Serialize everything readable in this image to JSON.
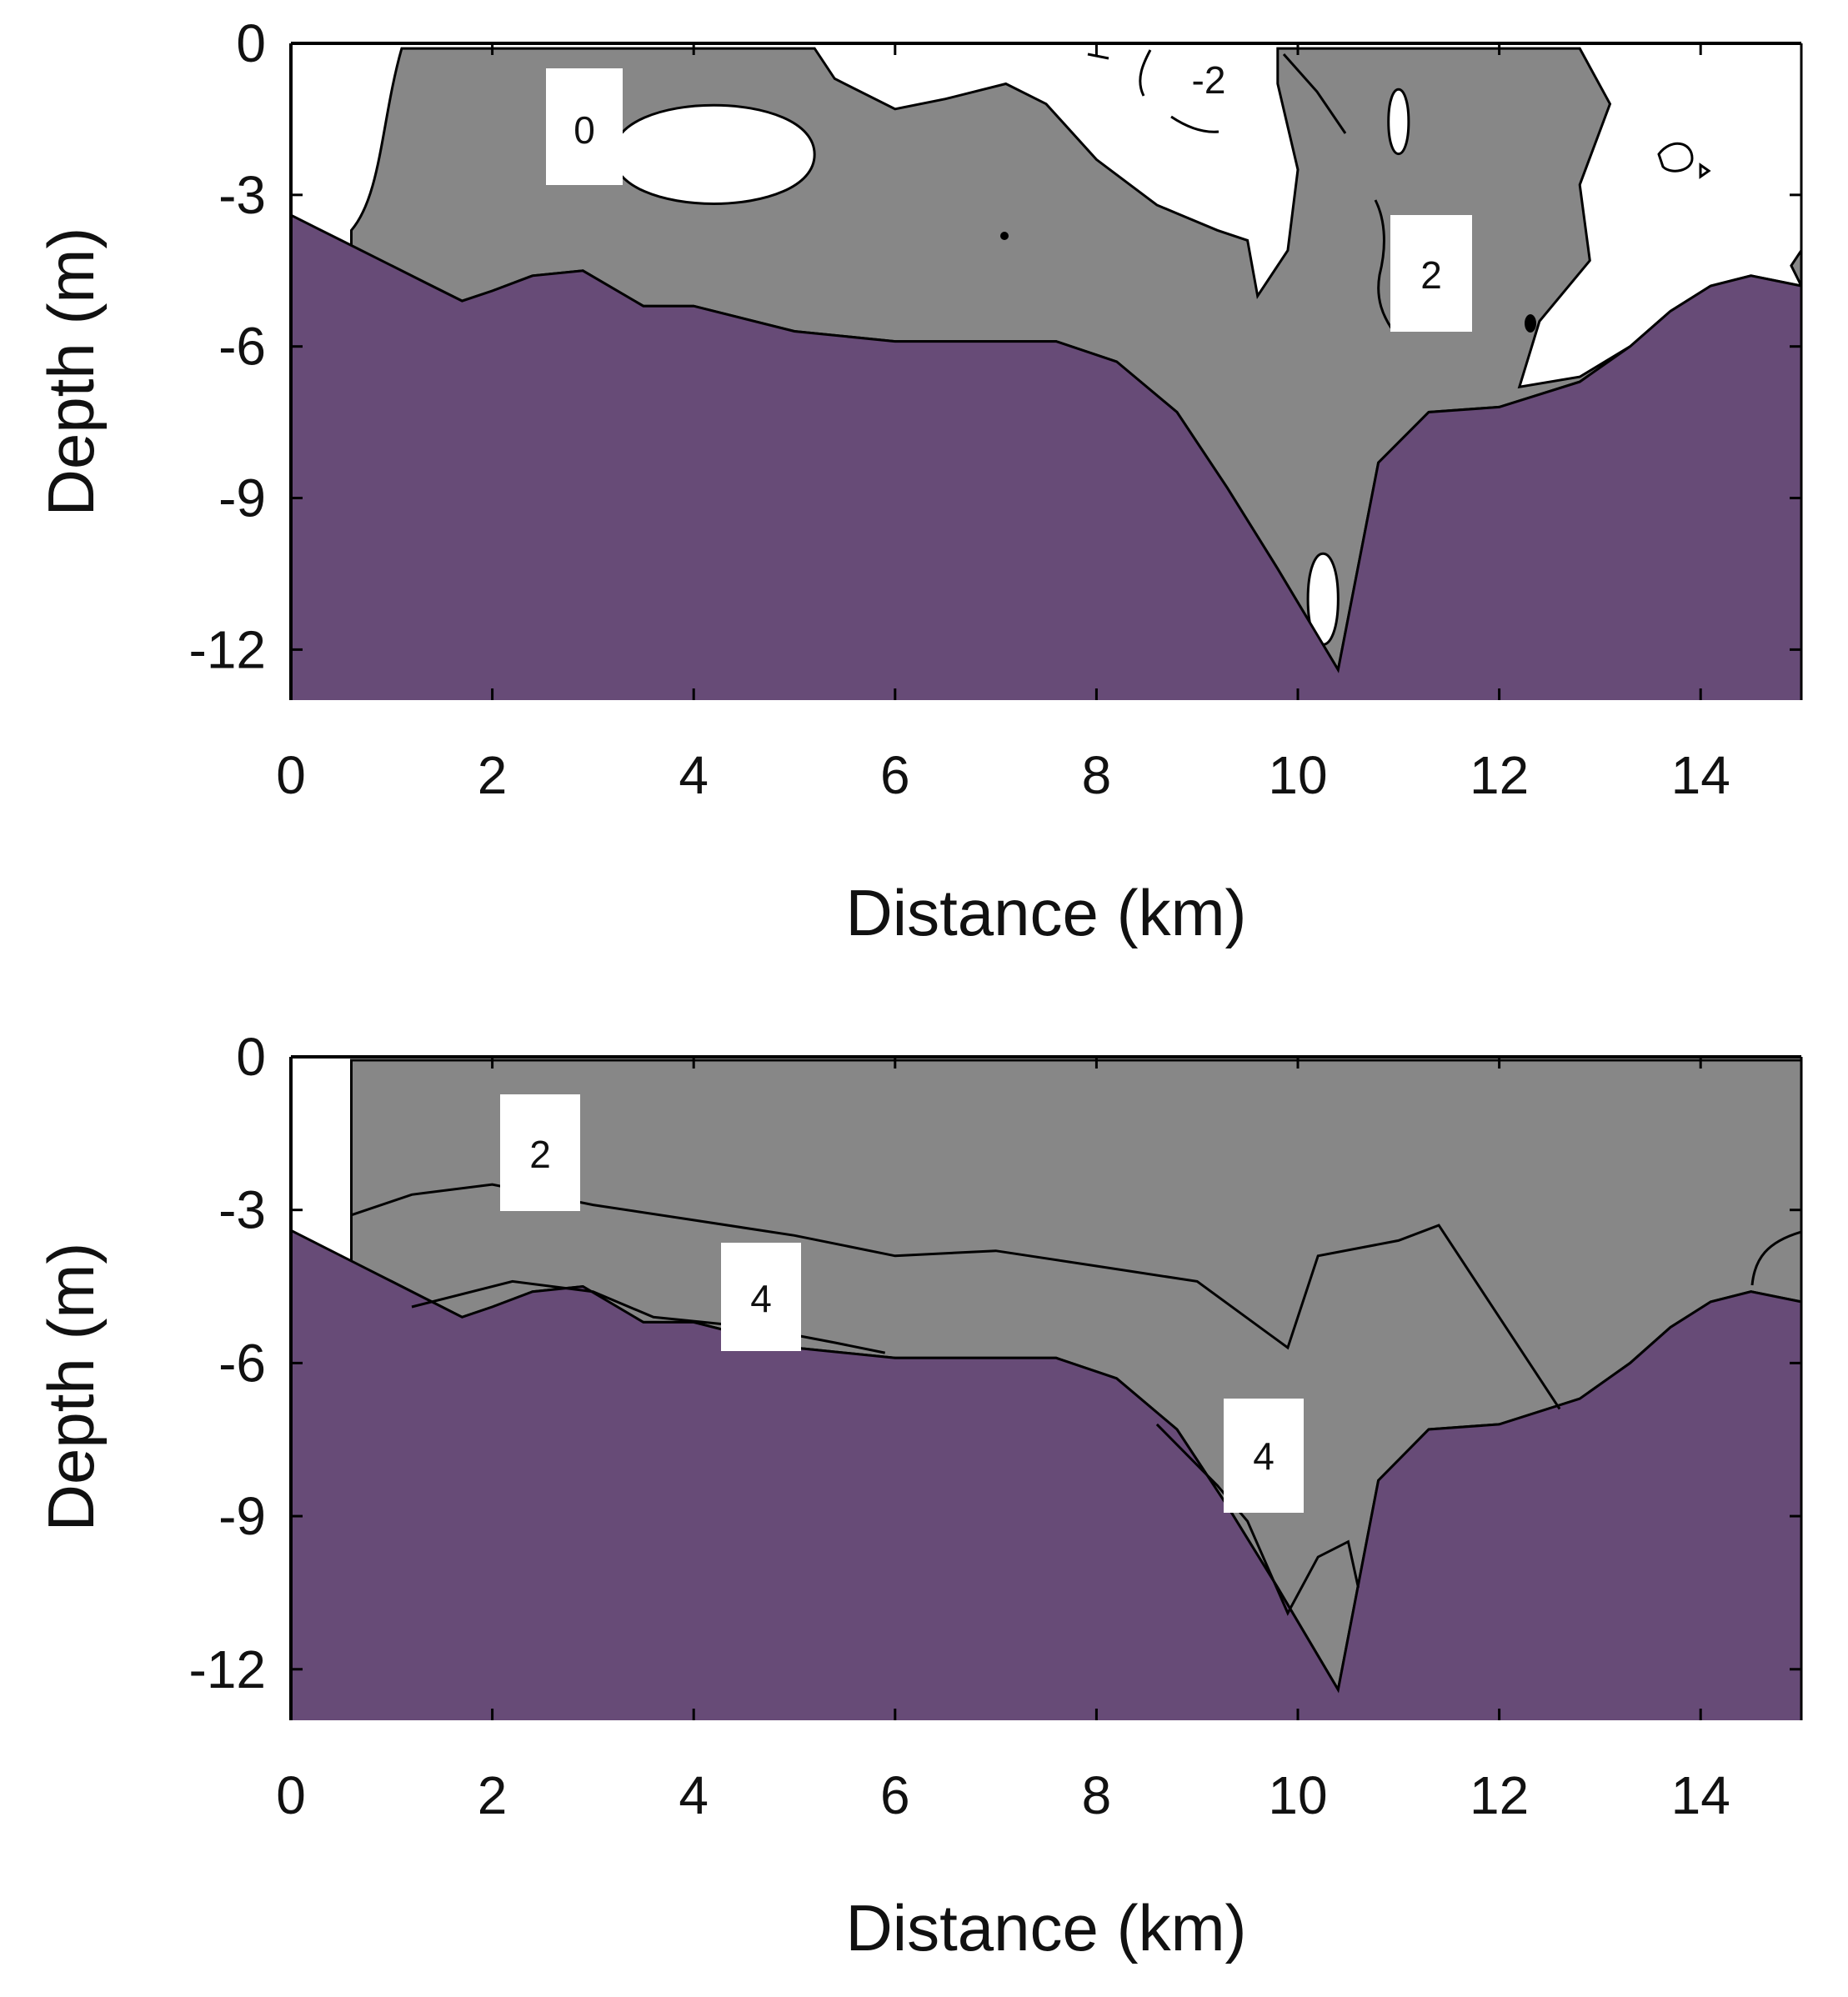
{
  "colors": {
    "seabed": "#674b77",
    "contour_fill": "#878787",
    "background": "#ffffff",
    "line": "#000000"
  },
  "chart_data": [
    {
      "type": "contour",
      "xlabel": "Distance (km)",
      "ylabel": "Depth (m)",
      "xlim": [
        0,
        15
      ],
      "ylim": [
        -13,
        0
      ],
      "xticks": [
        "0",
        "2",
        "4",
        "6",
        "8",
        "10",
        "12",
        "14"
      ],
      "yticks": [
        "0",
        "-3",
        "-6",
        "-9",
        "-12"
      ],
      "contour_labels": [
        "0",
        "-2",
        "2"
      ],
      "bathymetry": [
        [
          0,
          -3.4
        ],
        [
          0.5,
          -3.9
        ],
        [
          1,
          -4.4
        ],
        [
          1.4,
          -4.8
        ],
        [
          1.7,
          -5.1
        ],
        [
          2,
          -4.9
        ],
        [
          2.4,
          -4.6
        ],
        [
          2.9,
          -4.5
        ],
        [
          3.5,
          -5.2
        ],
        [
          4,
          -5.2
        ],
        [
          5,
          -5.7
        ],
        [
          6,
          -5.9
        ],
        [
          7,
          -5.9
        ],
        [
          7.6,
          -5.9
        ],
        [
          8.2,
          -6.3
        ],
        [
          8.8,
          -7.3
        ],
        [
          9.3,
          -8.8
        ],
        [
          9.8,
          -10.4
        ],
        [
          10.4,
          -12.4
        ],
        [
          10.8,
          -8.3
        ],
        [
          11.3,
          -7.3
        ],
        [
          12,
          -7.2
        ],
        [
          12.8,
          -6.7
        ],
        [
          13.3,
          -6
        ],
        [
          13.7,
          -5.3
        ],
        [
          14.1,
          -4.8
        ],
        [
          14.5,
          -4.6
        ],
        [
          15,
          -4.8
        ]
      ],
      "shaded_region_top": [
        [
          1.1,
          -0.1
        ],
        [
          3.5,
          -0.1
        ],
        [
          5.2,
          -0.1
        ],
        [
          5.4,
          -0.7
        ],
        [
          6,
          -1.3
        ],
        [
          6.5,
          -1.1
        ],
        [
          7.1,
          -0.8
        ],
        [
          7.5,
          -1.2
        ],
        [
          8,
          -2.3
        ],
        [
          8.6,
          -3.2
        ],
        [
          9.2,
          -3.7
        ],
        [
          9.5,
          -3.9
        ],
        [
          9.6,
          -5
        ],
        [
          9.9,
          -4.1
        ],
        [
          10,
          -2.5
        ],
        [
          9.8,
          -0.8
        ],
        [
          9.8,
          -0.1
        ],
        [
          12.8,
          -0.1
        ],
        [
          13.1,
          -1.2
        ],
        [
          12.8,
          -2.8
        ],
        [
          12.9,
          -4.3
        ],
        [
          12.4,
          -5.5
        ],
        [
          12.2,
          -6.8
        ],
        [
          12.8,
          -6.6
        ],
        [
          13.3,
          -6
        ],
        [
          13.7,
          -5.3
        ],
        [
          14.1,
          -4.8
        ],
        [
          14.5,
          -4.6
        ],
        [
          15,
          -4.8
        ],
        [
          15,
          -4.1
        ],
        [
          14.9,
          -4.4
        ]
      ],
      "shaded_left_edge_x": 0.6,
      "white_pockets": [
        {
          "x": [
            3.2,
            5.2
          ],
          "y": [
            -0.9,
            -3.5
          ]
        },
        {
          "x": [
            10.1,
            10.4
          ],
          "y": [
            -9.8,
            -12.2
          ]
        },
        {
          "x": [
            10.9,
            11.1
          ],
          "y": [
            -0.7,
            -2.4
          ]
        }
      ]
    },
    {
      "type": "contour",
      "xlabel": "Distance (km)",
      "ylabel": "Depth (m)",
      "xlim": [
        0,
        15
      ],
      "ylim": [
        -13,
        0
      ],
      "xticks": [
        "0",
        "2",
        "4",
        "6",
        "8",
        "10",
        "12",
        "14"
      ],
      "yticks": [
        "0",
        "-3",
        "-6",
        "-9",
        "-12"
      ],
      "contour_labels": [
        "2",
        "4",
        "4"
      ],
      "bathymetry": [
        [
          0,
          -3.4
        ],
        [
          0.5,
          -3.9
        ],
        [
          1,
          -4.4
        ],
        [
          1.4,
          -4.8
        ],
        [
          1.7,
          -5.1
        ],
        [
          2,
          -4.9
        ],
        [
          2.4,
          -4.6
        ],
        [
          2.9,
          -4.5
        ],
        [
          3.5,
          -5.2
        ],
        [
          4,
          -5.2
        ],
        [
          5,
          -5.7
        ],
        [
          6,
          -5.9
        ],
        [
          7,
          -5.9
        ],
        [
          7.6,
          -5.9
        ],
        [
          8.2,
          -6.3
        ],
        [
          8.8,
          -7.3
        ],
        [
          9.3,
          -8.8
        ],
        [
          9.8,
          -10.4
        ],
        [
          10.4,
          -12.4
        ],
        [
          10.8,
          -8.3
        ],
        [
          11.3,
          -7.3
        ],
        [
          12,
          -7.2
        ],
        [
          12.8,
          -6.7
        ],
        [
          13.3,
          -6
        ],
        [
          13.7,
          -5.3
        ],
        [
          14.1,
          -4.8
        ],
        [
          14.5,
          -4.6
        ],
        [
          15,
          -4.8
        ]
      ],
      "shaded_left_edge_x": 0.6,
      "contour_2m": [
        [
          0.6,
          -3.1
        ],
        [
          1.2,
          -2.7
        ],
        [
          2,
          -2.5
        ],
        [
          3,
          -2.9
        ],
        [
          4,
          -3.2
        ],
        [
          5,
          -3.5
        ],
        [
          6,
          -3.9
        ],
        [
          7,
          -3.8
        ],
        [
          8,
          -4.1
        ],
        [
          9,
          -4.4
        ],
        [
          9.9,
          -5.7
        ],
        [
          10.2,
          -3.9
        ],
        [
          11,
          -3.6
        ],
        [
          11.4,
          -3.3
        ],
        [
          12,
          -5.1
        ],
        [
          12.6,
          -6.9
        ]
      ],
      "contour_4m": [
        [
          1.2,
          -4.9
        ],
        [
          2.2,
          -4.4
        ],
        [
          3,
          -4.6
        ],
        [
          3.6,
          -5.1
        ],
        [
          4.6,
          -5.3
        ],
        [
          5.4,
          -5.6
        ],
        [
          5.9,
          -5.8
        ]
      ],
      "contour_4m_deep": [
        [
          8.6,
          -7.2
        ],
        [
          9.2,
          -8.4
        ],
        [
          9.5,
          -9.1
        ],
        [
          9.9,
          -10.9
        ],
        [
          10.2,
          -9.8
        ],
        [
          10.5,
          -9.5
        ],
        [
          10.6,
          -10.4
        ]
      ]
    }
  ]
}
